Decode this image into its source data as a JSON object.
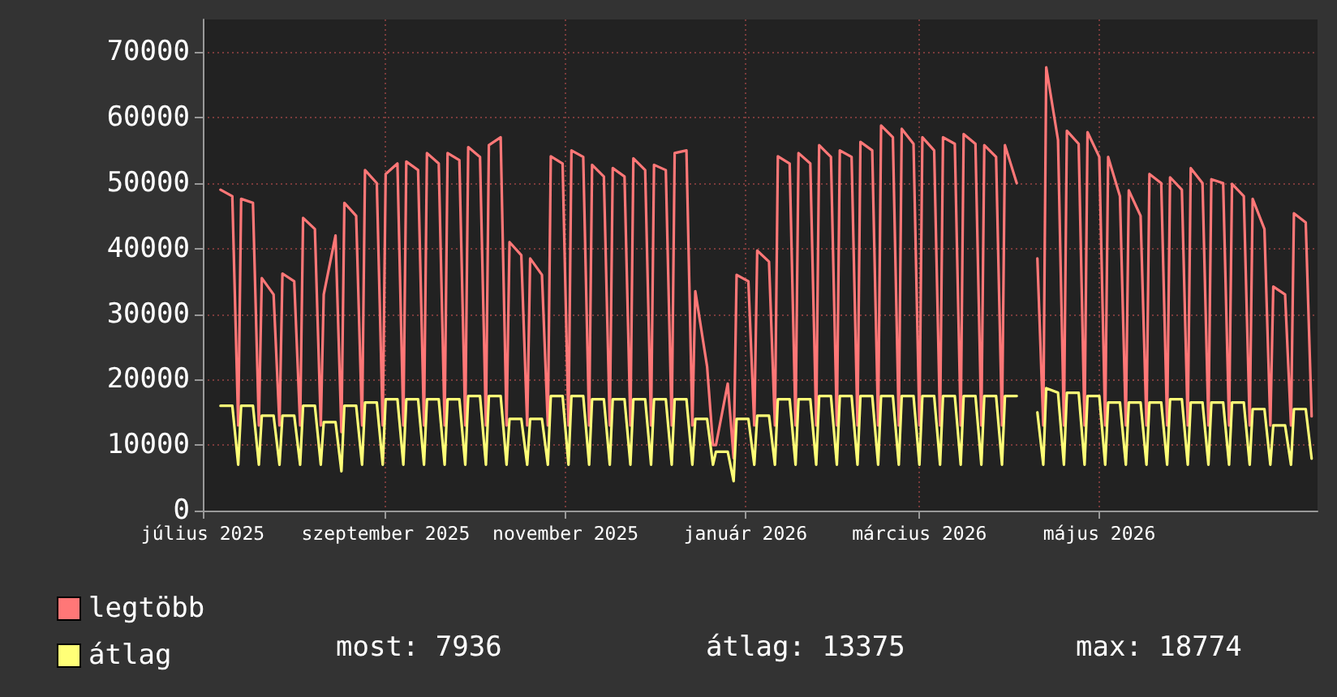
{
  "chart_data": {
    "type": "line",
    "x": [
      "2025-07-07",
      "2025-07-11",
      "2025-07-13",
      "2025-07-14",
      "2025-07-18",
      "2025-07-20",
      "2025-07-21",
      "2025-07-25",
      "2025-07-27",
      "2025-07-28",
      "2025-08-01",
      "2025-08-03",
      "2025-08-04",
      "2025-08-08",
      "2025-08-10",
      "2025-08-11",
      "2025-08-15",
      "2025-08-17",
      "2025-08-18",
      "2025-08-22",
      "2025-08-24",
      "2025-08-25",
      "2025-08-29",
      "2025-08-31",
      "2025-09-01",
      "2025-09-05",
      "2025-09-07",
      "2025-09-08",
      "2025-09-12",
      "2025-09-14",
      "2025-09-15",
      "2025-09-19",
      "2025-09-21",
      "2025-09-22",
      "2025-09-26",
      "2025-09-28",
      "2025-09-29",
      "2025-10-03",
      "2025-10-05",
      "2025-10-06",
      "2025-10-10",
      "2025-10-12",
      "2025-10-13",
      "2025-10-17",
      "2025-10-19",
      "2025-10-20",
      "2025-10-24",
      "2025-10-26",
      "2025-10-27",
      "2025-10-31",
      "2025-11-02",
      "2025-11-03",
      "2025-11-07",
      "2025-11-09",
      "2025-11-10",
      "2025-11-14",
      "2025-11-16",
      "2025-11-17",
      "2025-11-21",
      "2025-11-23",
      "2025-11-24",
      "2025-11-28",
      "2025-11-30",
      "2025-12-01",
      "2025-12-05",
      "2025-12-07",
      "2025-12-08",
      "2025-12-12",
      "2025-12-14",
      "2025-12-15",
      "2025-12-19",
      "2025-12-21",
      "2025-12-22",
      "2025-12-26",
      "2025-12-28",
      "2025-12-29",
      "2026-01-02",
      "2026-01-04",
      "2026-01-05",
      "2026-01-09",
      "2026-01-11",
      "2026-01-12",
      "2026-01-16",
      "2026-01-18",
      "2026-01-19",
      "2026-01-23",
      "2026-01-25",
      "2026-01-26",
      "2026-01-30",
      "2026-02-01",
      "2026-02-02",
      "2026-02-06",
      "2026-02-08",
      "2026-02-09",
      "2026-02-13",
      "2026-02-15",
      "2026-02-16",
      "2026-02-20",
      "2026-02-22",
      "2026-02-23",
      "2026-02-27",
      "2026-03-01",
      "2026-03-02",
      "2026-03-06",
      "2026-03-08",
      "2026-03-09",
      "2026-03-13",
      "2026-03-15",
      "2026-03-16",
      "2026-03-20",
      "2026-03-22",
      "2026-03-23",
      "2026-03-27",
      "2026-03-29",
      "2026-03-30",
      "2026-04-03",
      "2026-04-05",
      "2026-04-06",
      "2026-04-10",
      "2026-04-12",
      "2026-04-13",
      "2026-04-17",
      "2026-04-19",
      "2026-04-20",
      "2026-04-24",
      "2026-04-26",
      "2026-04-27",
      "2026-05-01",
      "2026-05-03",
      "2026-05-04",
      "2026-05-08",
      "2026-05-10",
      "2026-05-11",
      "2026-05-15",
      "2026-05-17",
      "2026-05-18",
      "2026-05-22",
      "2026-05-24",
      "2026-05-25",
      "2026-05-29",
      "2026-05-31",
      "2026-06-01",
      "2026-06-05",
      "2026-06-07",
      "2026-06-08",
      "2026-06-12",
      "2026-06-14",
      "2026-06-15",
      "2026-06-19",
      "2026-06-21",
      "2026-06-22",
      "2026-06-26",
      "2026-06-28",
      "2026-06-29",
      "2026-07-03",
      "2026-07-05",
      "2026-07-06",
      "2026-07-10",
      "2026-07-12"
    ],
    "series": [
      {
        "name": "legtöbb",
        "color": "#ff7777",
        "values": [
          49000,
          48000,
          13000,
          47600,
          47000,
          13000,
          35500,
          33000,
          13000,
          36200,
          35000,
          13000,
          44700,
          43000,
          13000,
          33000,
          42000,
          12000,
          47000,
          45000,
          13000,
          52000,
          50000,
          13000,
          51400,
          53000,
          13000,
          53300,
          52000,
          13000,
          54600,
          53000,
          13000,
          54600,
          53500,
          13000,
          55500,
          54000,
          13000,
          55800,
          57000,
          13000,
          41000,
          39000,
          13000,
          38500,
          36000,
          13000,
          54100,
          53000,
          13000,
          55000,
          54000,
          13000,
          52800,
          51000,
          13000,
          52300,
          51000,
          13000,
          53800,
          52000,
          13000,
          52800,
          52000,
          13000,
          54600,
          55000,
          13000,
          33500,
          22000,
          10000,
          10000,
          19400,
          8000,
          36000,
          35000,
          13000,
          39700,
          38000,
          13000,
          54100,
          53000,
          13000,
          54600,
          53000,
          13000,
          55800,
          54000,
          13000,
          55000,
          54000,
          13000,
          56300,
          55000,
          13000,
          58800,
          57000,
          13000,
          58300,
          56000,
          13000,
          57000,
          55000,
          13000,
          57000,
          56000,
          13000,
          57500,
          56000,
          13000,
          55800,
          54000,
          13000,
          55800,
          50000,
          null,
          null,
          38500,
          13000,
          67700,
          56600,
          13000,
          58000,
          56000,
          13000,
          57800,
          54000,
          13000,
          54000,
          48000,
          13000,
          48900,
          45000,
          13000,
          51400,
          50000,
          13000,
          50900,
          49000,
          13000,
          52300,
          50000,
          13000,
          50600,
          50000,
          13000,
          49900,
          48000,
          13000,
          47600,
          43000,
          13000,
          34200,
          33000,
          13000,
          45400,
          44000,
          14400
        ]
      },
      {
        "name": "átlag",
        "color": "#ffff77",
        "values": [
          16000,
          16000,
          7000,
          16000,
          16000,
          7000,
          14500,
          14500,
          7000,
          14500,
          14500,
          7000,
          16000,
          16000,
          7000,
          13500,
          13500,
          6000,
          16000,
          16000,
          7000,
          16500,
          16500,
          7000,
          17000,
          17000,
          7000,
          17000,
          17000,
          7000,
          17000,
          17000,
          7000,
          17000,
          17000,
          7000,
          17500,
          17500,
          7000,
          17500,
          17500,
          7000,
          14000,
          14000,
          7000,
          14000,
          14000,
          7000,
          17500,
          17500,
          7000,
          17500,
          17500,
          7000,
          17000,
          17000,
          7000,
          17000,
          17000,
          7000,
          17000,
          17000,
          7000,
          17000,
          17000,
          7000,
          17000,
          17000,
          7000,
          14000,
          14000,
          7000,
          9000,
          9000,
          4500,
          14000,
          14000,
          7000,
          14500,
          14500,
          7000,
          17000,
          17000,
          7000,
          17000,
          17000,
          7000,
          17500,
          17500,
          7000,
          17500,
          17500,
          7000,
          17500,
          17500,
          7000,
          17500,
          17500,
          7000,
          17500,
          17500,
          7000,
          17500,
          17500,
          7000,
          17500,
          17500,
          7000,
          17500,
          17500,
          7000,
          17500,
          17500,
          7000,
          17500,
          17500,
          null,
          null,
          15000,
          7000,
          18700,
          18000,
          7000,
          18000,
          18000,
          7000,
          17500,
          17500,
          7000,
          16500,
          16500,
          7000,
          16500,
          16500,
          7000,
          16500,
          16500,
          7000,
          17000,
          17000,
          7000,
          16500,
          16500,
          7000,
          16500,
          16500,
          7000,
          16500,
          16500,
          7000,
          15500,
          15500,
          7000,
          13000,
          13000,
          7000,
          15500,
          15500,
          7936
        ]
      }
    ],
    "xlim": [
      "2025-07-01",
      "2026-07-14"
    ],
    "xticks": [
      {
        "value": "2025-07-01",
        "label": "július 2025"
      },
      {
        "value": "2025-09-01",
        "label": "szeptember 2025"
      },
      {
        "value": "2025-11-01",
        "label": "november 2025"
      },
      {
        "value": "2026-01-01",
        "label": "január 2026"
      },
      {
        "value": "2026-03-01",
        "label": "március 2026"
      },
      {
        "value": "2026-05-01",
        "label": "május 2026"
      }
    ],
    "ylim": [
      0,
      75000
    ],
    "yticks": [
      0,
      10000,
      20000,
      30000,
      40000,
      50000,
      60000,
      70000
    ],
    "grid": true,
    "legend": "bottom left",
    "annotations": [
      "most: 7936",
      "átlag: 13375",
      "max: 18774"
    ]
  }
}
